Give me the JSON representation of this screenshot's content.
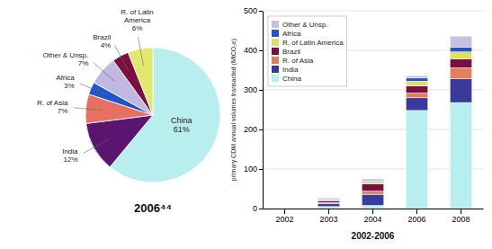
{
  "chart_data": [
    {
      "type": "pie",
      "title": "2006⁴⁴",
      "categories": [
        "China",
        "India",
        "R. of Asia",
        "Africa",
        "Other & Unsp.",
        "Brazil",
        "R. of Latin\nAmerica"
      ],
      "values": [
        61,
        12,
        7,
        3,
        7,
        4,
        6
      ],
      "value_labels": [
        "61%",
        "12%",
        "7%",
        "3%",
        "7%",
        "4%",
        "6%"
      ],
      "colors": [
        "#b8eeee",
        "#5a1570",
        "#e87060",
        "#2255cc",
        "#c0b8e0",
        "#7a1040",
        "#e0e870"
      ],
      "data_labels": true
    },
    {
      "type": "bar",
      "stacked": true,
      "categories": [
        "2002",
        "2003",
        "2004",
        "2006",
        "2008"
      ],
      "series": [
        {
          "name": "China",
          "color": "#b8eeee",
          "values": [
            1,
            5,
            8,
            248,
            268
          ]
        },
        {
          "name": "India",
          "color": "#3a3a9a",
          "values": [
            0.5,
            8,
            28,
            32,
            60
          ]
        },
        {
          "name": "R. of Asia",
          "color": "#e08060",
          "values": [
            0.2,
            2,
            8,
            12,
            28
          ]
        },
        {
          "name": "Brazil",
          "color": "#7a1040",
          "values": [
            0.2,
            5,
            18,
            18,
            22
          ]
        },
        {
          "name": "R. of Latin America",
          "color": "#e0e060",
          "values": [
            0.1,
            2,
            5,
            12,
            18
          ]
        },
        {
          "name": "Africa",
          "color": "#2255cc",
          "values": [
            0.1,
            1,
            2,
            8,
            12
          ]
        },
        {
          "name": "Other & Unsp.",
          "color": "#c8c0e0",
          "values": [
            0.1,
            4,
            6,
            6,
            28
          ]
        }
      ],
      "xlabel": "2002-2006",
      "ylabel": "primary CDM annual volumes transacted (MtCO₂e)",
      "ylim": [
        0,
        500
      ],
      "yticks": [
        0,
        100,
        200,
        300,
        400,
        500
      ],
      "grid": true,
      "legend": "upper-left"
    }
  ]
}
